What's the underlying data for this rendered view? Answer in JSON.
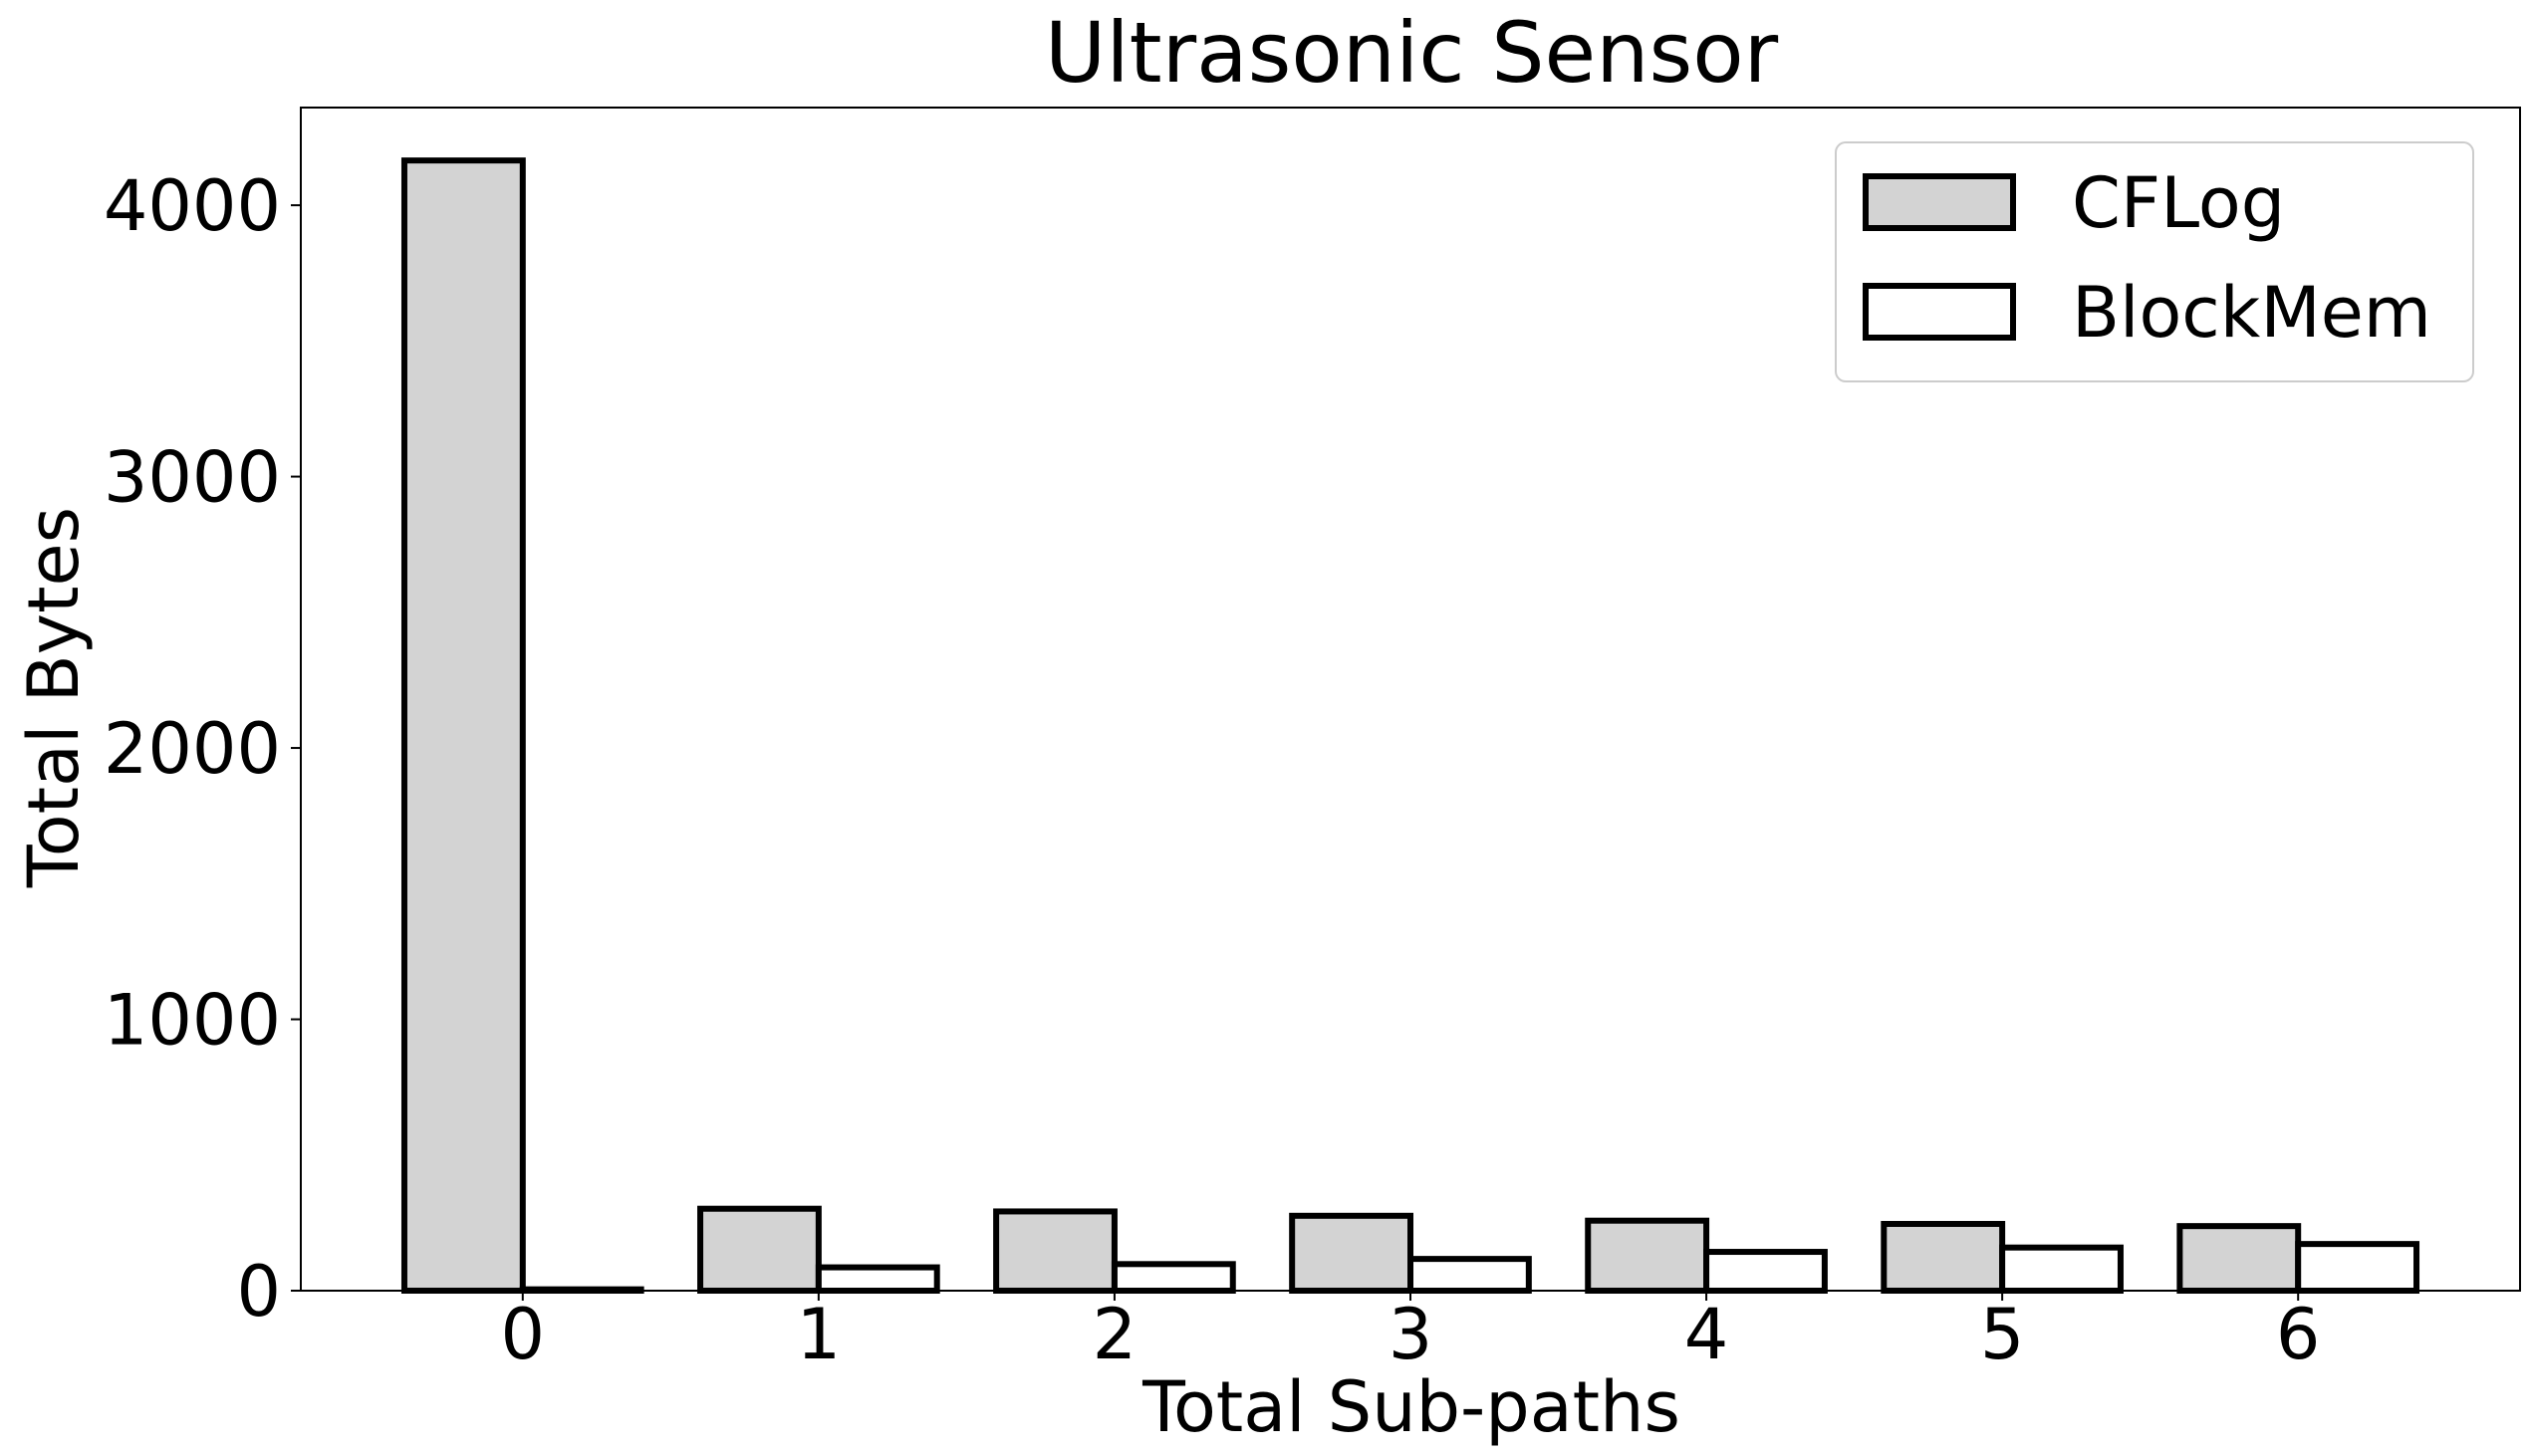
{
  "chart_data": {
    "type": "bar",
    "title": "Ultrasonic Sensor",
    "xlabel": "Total Sub-paths",
    "ylabel": "Total Bytes",
    "categories": [
      "0",
      "1",
      "2",
      "3",
      "4",
      "5",
      "6"
    ],
    "ylim": [
      0,
      4360
    ],
    "xlim": [
      -0.75,
      6.75
    ],
    "yticks": [
      0,
      1000,
      2000,
      3000,
      4000
    ],
    "grid": false,
    "legend_position": "top-right",
    "series": [
      {
        "name": "CFLog",
        "values": [
          4165,
          302,
          292,
          276,
          258,
          246,
          238
        ],
        "fill": "#d3d3d3",
        "stroke": "#000000"
      },
      {
        "name": "BlockMem",
        "values": [
          5,
          86,
          98,
          117,
          143,
          159,
          172
        ],
        "fill": "#ffffff",
        "stroke": "#000000"
      }
    ]
  }
}
